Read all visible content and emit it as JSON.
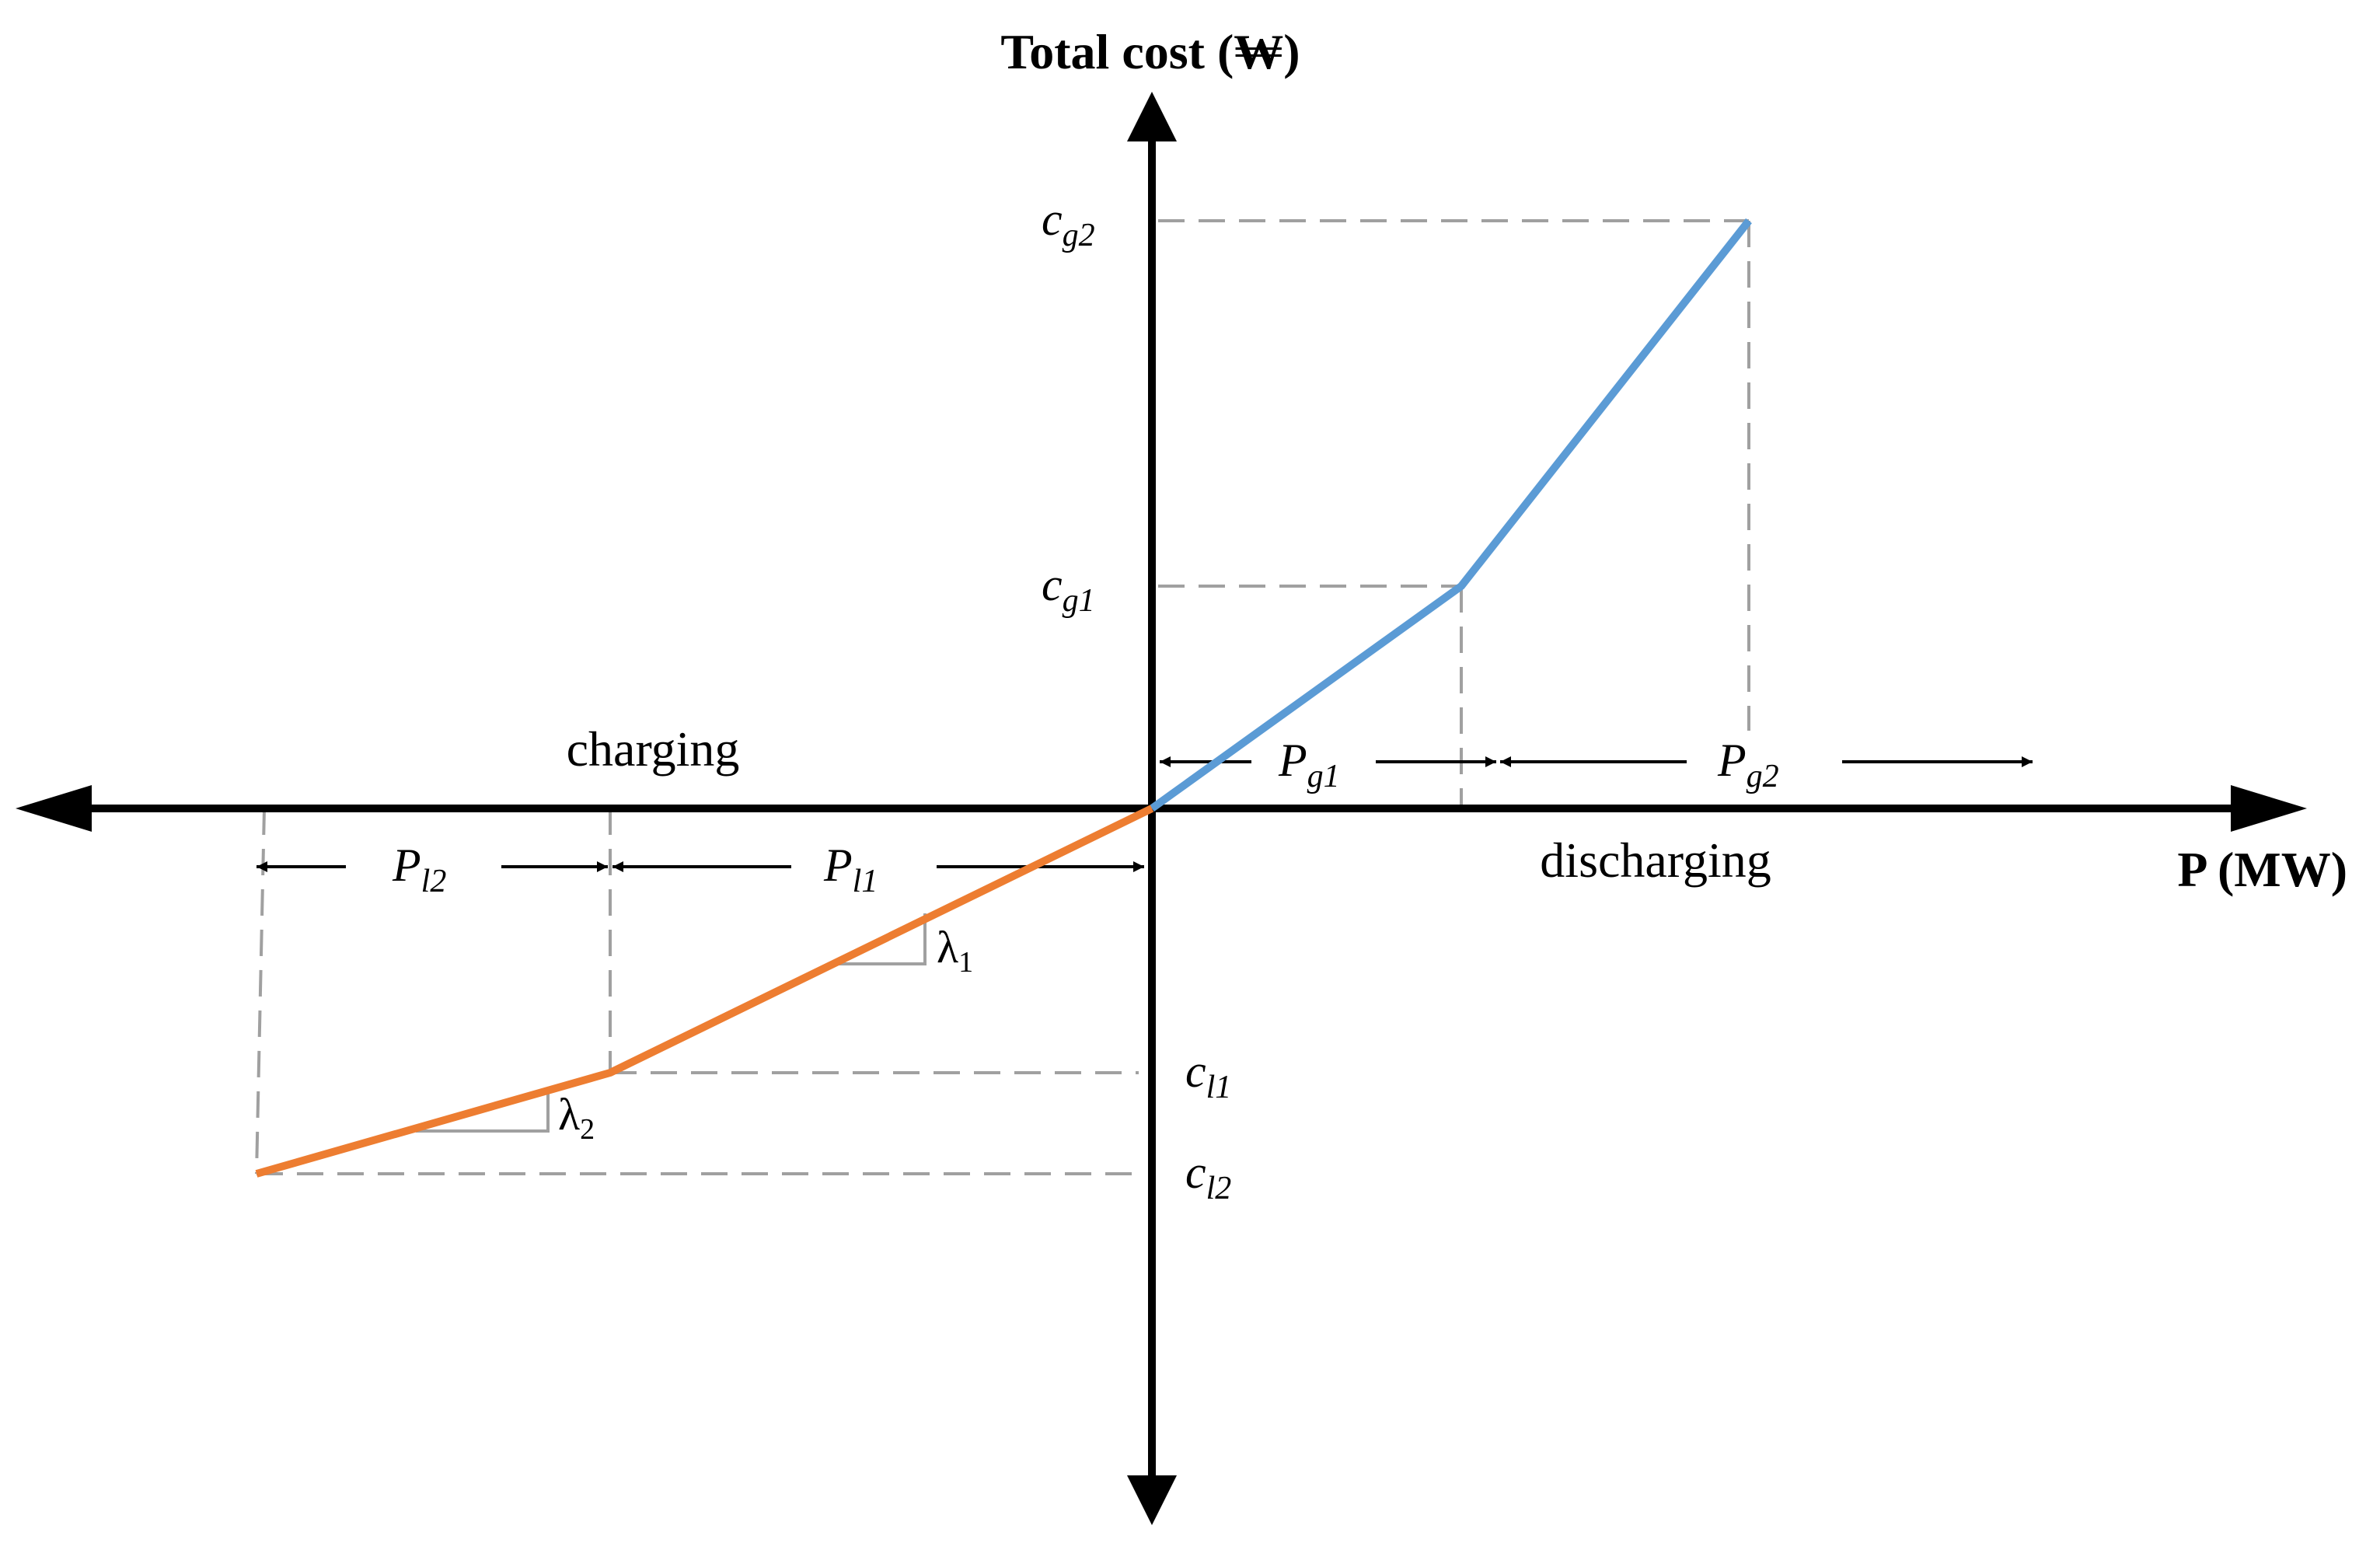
{
  "axes": {
    "y_label": "Total cost (₩)",
    "x_label": "P (MW)"
  },
  "regions": {
    "left": "charging",
    "right": "discharging"
  },
  "y_ticks": {
    "cg2": {
      "base": "c",
      "sub": "g2"
    },
    "cg1": {
      "base": "c",
      "sub": "g1"
    },
    "cl1": {
      "base": "c",
      "sub": "l1"
    },
    "cl2": {
      "base": "c",
      "sub": "l2"
    }
  },
  "intervals": {
    "pg1": {
      "base": "P",
      "sub": "g1"
    },
    "pg2": {
      "base": "P",
      "sub": "g2"
    },
    "pl1": {
      "base": "P",
      "sub": "l1"
    },
    "pl2": {
      "base": "P",
      "sub": "l2"
    }
  },
  "slopes": {
    "lambda1": {
      "base": "λ",
      "sub": "1"
    },
    "lambda2": {
      "base": "λ",
      "sub": "2"
    }
  },
  "colors": {
    "discharging_curve": "#5b9bd5",
    "charging_curve": "#ed7d31",
    "axis": "#000000",
    "guide": "#a0a0a0"
  }
}
